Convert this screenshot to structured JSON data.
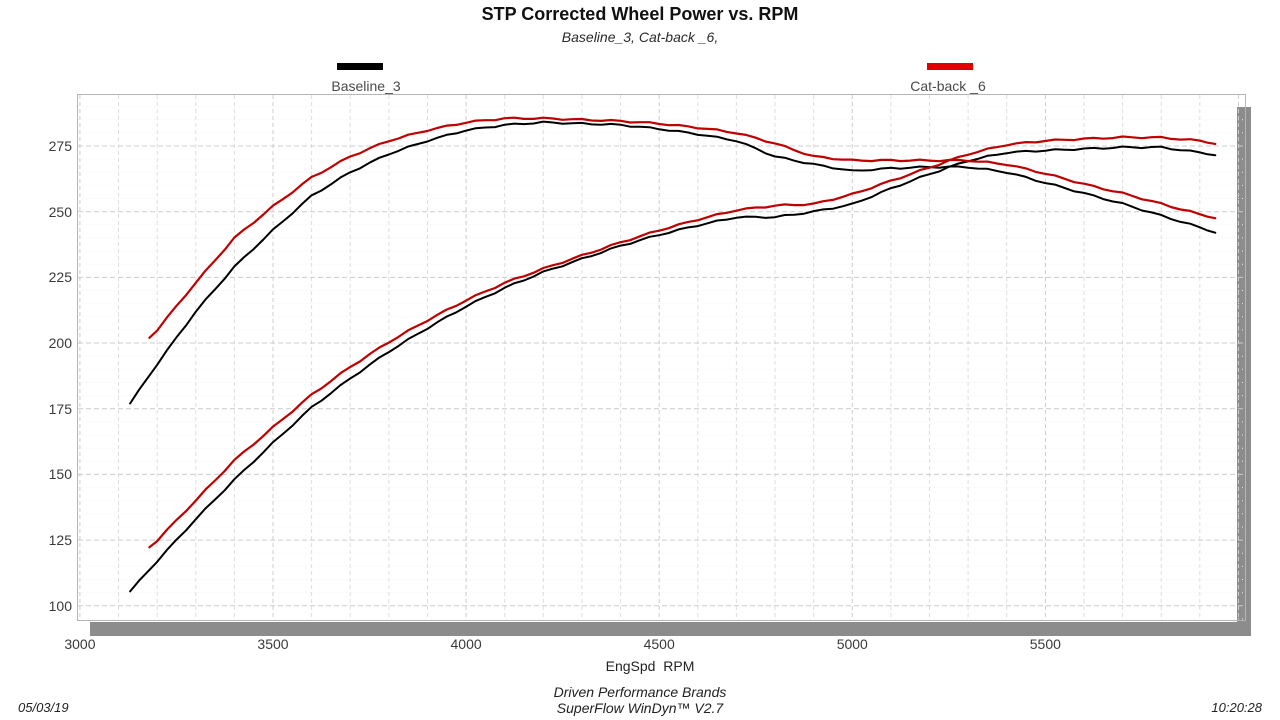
{
  "header": {
    "title": "STP Corrected Wheel Power vs. RPM",
    "subtitle": "Baseline_3, Cat-back _6,"
  },
  "legend": [
    {
      "label": "Baseline_3",
      "color": "#000000"
    },
    {
      "label": "Cat-back _6",
      "color": "#e00000"
    }
  ],
  "footer": {
    "axis_label": "EngSpd  RPM",
    "brand": "Driven Performance Brands",
    "software": "SuperFlow WinDyn™ V2.7",
    "date": "05/03/19",
    "time": "10:20:28"
  },
  "chart_data": {
    "type": "line",
    "title": "STP Corrected Wheel Power vs. RPM",
    "xlabel": "EngSpd RPM",
    "ylabel": "",
    "xlim": [
      2995,
      6017
    ],
    "ylim": [
      94.6,
      294.4
    ],
    "x_ticks": [
      3000,
      3500,
      4000,
      4500,
      5000,
      5500
    ],
    "x_gridline_step": 100,
    "x_gridline_max": 6000,
    "y_ticks": [
      100,
      125,
      150,
      175,
      200,
      225,
      250,
      275
    ],
    "y_minor_step": 5,
    "grid": true,
    "legend_position": "top",
    "crossover_rpm": 5252,
    "series": [
      {
        "name": "Baseline_3 torque",
        "run": "Baseline_3",
        "color": "#000000",
        "width": 2,
        "x": [
          3130,
          3200,
          3300,
          3400,
          3500,
          3600,
          3700,
          3800,
          3900,
          4000,
          4100,
          4200,
          4300,
          4400,
          4500,
          4600,
          4700,
          4800,
          4900,
          5000,
          5100,
          5200,
          5300,
          5400,
          5500,
          5600,
          5700,
          5800,
          5900,
          5940
        ],
        "y": [
          177,
          192,
          212,
          229,
          243,
          256,
          265,
          272,
          277,
          281,
          283,
          284,
          283.5,
          283,
          281.5,
          279.5,
          277,
          271,
          268,
          265.5,
          266.5,
          267,
          267,
          265,
          261,
          257,
          253,
          248.5,
          244,
          242
        ]
      },
      {
        "name": "Baseline_3 power",
        "run": "Baseline_3",
        "color": "#000000",
        "width": 2,
        "x": [
          3130,
          3200,
          3300,
          3400,
          3500,
          3600,
          3700,
          3800,
          3900,
          4000,
          4100,
          4200,
          4300,
          4400,
          4500,
          4600,
          4700,
          4800,
          4900,
          5000,
          5100,
          5200,
          5300,
          5400,
          5500,
          5600,
          5700,
          5800,
          5900,
          5940
        ],
        "y": [
          105.5,
          117,
          133,
          148,
          162,
          175.5,
          186.5,
          196.8,
          205.7,
          214,
          221,
          227,
          232,
          237,
          241.2,
          244.8,
          247.9,
          247.9,
          250,
          252.8,
          258.8,
          264.3,
          269.4,
          272.5,
          273.3,
          273.9,
          274.5,
          274.5,
          272.5,
          271.5
        ]
      },
      {
        "name": "Cat-back _6 torque",
        "run": "Cat-back _6",
        "color": "#c00000",
        "width": 2.2,
        "x": [
          3180,
          3200,
          3300,
          3400,
          3500,
          3600,
          3700,
          3800,
          3900,
          4000,
          4100,
          4200,
          4300,
          4400,
          4500,
          4600,
          4700,
          4800,
          4900,
          5000,
          5100,
          5200,
          5300,
          5400,
          5500,
          5600,
          5700,
          5800,
          5900,
          5940
        ],
        "y": [
          202,
          205,
          223,
          240,
          252,
          263,
          271,
          277,
          281,
          284,
          285.5,
          285.5,
          285,
          284.5,
          283.5,
          282,
          280,
          276,
          271,
          269.5,
          269.5,
          269.5,
          269.5,
          268,
          264.5,
          260.5,
          257,
          253,
          249,
          247.5
        ]
      },
      {
        "name": "Cat-back _6 power",
        "run": "Cat-back _6",
        "color": "#c00000",
        "width": 2.2,
        "x": [
          3180,
          3200,
          3300,
          3400,
          3500,
          3600,
          3700,
          3800,
          3900,
          4000,
          4100,
          4200,
          4300,
          4400,
          4500,
          4600,
          4700,
          4800,
          4900,
          5000,
          5100,
          5200,
          5300,
          5400,
          5500,
          5600,
          5700,
          5800,
          5900,
          5940
        ],
        "y": [
          122.3,
          124.9,
          140.1,
          155.4,
          167.9,
          180.3,
          190.9,
          200.4,
          208.7,
          216.3,
          222.9,
          228.3,
          233.3,
          238.3,
          242.9,
          247,
          250.6,
          252.3,
          252.9,
          256.6,
          261.7,
          266.8,
          271.9,
          275.5,
          277,
          277.7,
          278.3,
          278.2,
          277,
          275.8
        ]
      }
    ]
  }
}
